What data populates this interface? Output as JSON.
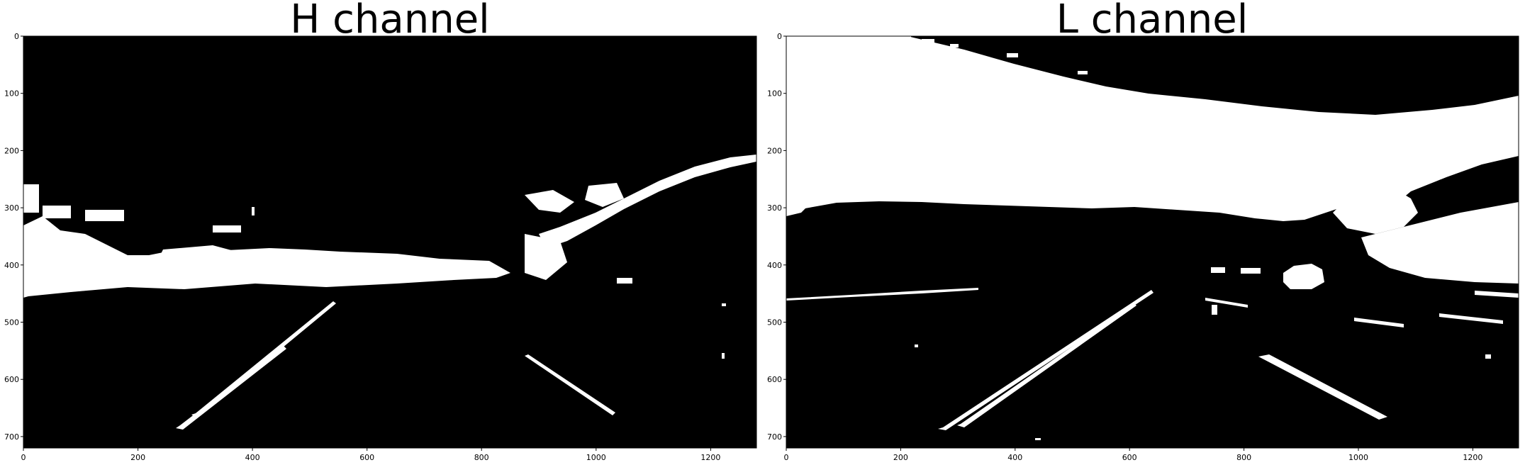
{
  "panels": [
    {
      "title": "H channel",
      "image_extent": {
        "x": [
          0,
          1280
        ],
        "y": [
          720,
          0
        ]
      },
      "x_ticks": [
        0,
        200,
        400,
        600,
        800,
        1000,
        1200
      ],
      "y_ticks": [
        0,
        100,
        200,
        300,
        400,
        500,
        600,
        700
      ],
      "content": "binary threshold mask of road scene: hue-channel response"
    },
    {
      "title": "L channel",
      "image_extent": {
        "x": [
          0,
          1280
        ],
        "y": [
          720,
          0
        ]
      },
      "x_ticks": [
        0,
        200,
        400,
        600,
        800,
        1000,
        1200
      ],
      "y_ticks": [
        0,
        100,
        200,
        300,
        400,
        500,
        600,
        700
      ],
      "content": "binary threshold mask of road scene: lightness-channel response"
    }
  ],
  "colors": {
    "foreground": "#ffffff",
    "background": "#000000"
  }
}
